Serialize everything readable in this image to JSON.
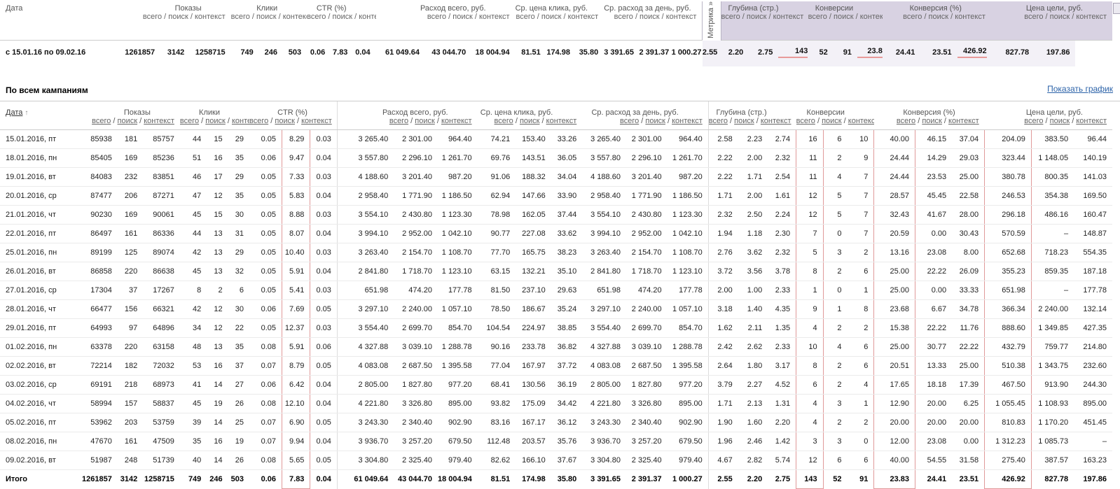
{
  "colors": {
    "accent_link": "#2b62a8",
    "highlight_red": "#e09a9a",
    "panel_lavender": "#d8d2e2"
  },
  "subcols": [
    "всего",
    "поиск",
    "контекст"
  ],
  "sub_joined": "всего / поиск / контекст",
  "groups": [
    {
      "label": "Показы"
    },
    {
      "label": "Клики"
    },
    {
      "label": "CTR (%)"
    },
    {
      "label": "Расход всего, руб."
    },
    {
      "label": "Ср. цена клика, руб."
    },
    {
      "label": "Ср. расход за день, руб."
    },
    {
      "label": "Глубина (стр.)"
    },
    {
      "label": "Конверсии"
    },
    {
      "label": "Конверсия (%)"
    },
    {
      "label": "Цена цели, руб."
    }
  ],
  "summary": {
    "date_label": "Дата",
    "period": "с 15.01.16 по 09.02.16",
    "metric_label": "Метрика »",
    "values": [
      "1261857",
      "3142",
      "1258715",
      "749",
      "246",
      "503",
      "0.06",
      "7.83",
      "0.04",
      "61 049.64",
      "43 044.70",
      "18 004.94",
      "81.51",
      "174.98",
      "35.80",
      "3 391.65",
      "2 391.37",
      "1 000.27",
      "2.55",
      "2.20",
      "2.75",
      "143",
      "52",
      "91",
      "23.83",
      "24.41",
      "23.51",
      "426.92",
      "827.78",
      "197.86"
    ],
    "underlined": [
      21,
      24,
      27
    ]
  },
  "section": {
    "title": "По всем кампаниям",
    "chart_link": "Показать график"
  },
  "table": {
    "date_header": "Дата",
    "sort_icon": "↑",
    "red_columns": [
      7,
      21,
      24,
      27
    ],
    "rows": [
      {
        "date": "15.01.2016, пт",
        "values": [
          "85938",
          "181",
          "85757",
          "44",
          "15",
          "29",
          "0.05",
          "8.29",
          "0.03",
          "3 265.40",
          "2 301.00",
          "964.40",
          "74.21",
          "153.40",
          "33.26",
          "3 265.40",
          "2 301.00",
          "964.40",
          "2.58",
          "2.23",
          "2.74",
          "16",
          "6",
          "10",
          "40.00",
          "46.15",
          "37.04",
          "204.09",
          "383.50",
          "96.44"
        ]
      },
      {
        "date": "18.01.2016, пн",
        "values": [
          "85405",
          "169",
          "85236",
          "51",
          "16",
          "35",
          "0.06",
          "9.47",
          "0.04",
          "3 557.80",
          "2 296.10",
          "1 261.70",
          "69.76",
          "143.51",
          "36.05",
          "3 557.80",
          "2 296.10",
          "1 261.70",
          "2.22",
          "2.00",
          "2.32",
          "11",
          "2",
          "9",
          "24.44",
          "14.29",
          "29.03",
          "323.44",
          "1 148.05",
          "140.19"
        ]
      },
      {
        "date": "19.01.2016, вт",
        "values": [
          "84083",
          "232",
          "83851",
          "46",
          "17",
          "29",
          "0.05",
          "7.33",
          "0.03",
          "4 188.60",
          "3 201.40",
          "987.20",
          "91.06",
          "188.32",
          "34.04",
          "4 188.60",
          "3 201.40",
          "987.20",
          "2.22",
          "1.71",
          "2.54",
          "11",
          "4",
          "7",
          "24.44",
          "23.53",
          "25.00",
          "380.78",
          "800.35",
          "141.03"
        ]
      },
      {
        "date": "20.01.2016, ср",
        "values": [
          "87477",
          "206",
          "87271",
          "47",
          "12",
          "35",
          "0.05",
          "5.83",
          "0.04",
          "2 958.40",
          "1 771.90",
          "1 186.50",
          "62.94",
          "147.66",
          "33.90",
          "2 958.40",
          "1 771.90",
          "1 186.50",
          "1.71",
          "2.00",
          "1.61",
          "12",
          "5",
          "7",
          "28.57",
          "45.45",
          "22.58",
          "246.53",
          "354.38",
          "169.50"
        ]
      },
      {
        "date": "21.01.2016, чт",
        "values": [
          "90230",
          "169",
          "90061",
          "45",
          "15",
          "30",
          "0.05",
          "8.88",
          "0.03",
          "3 554.10",
          "2 430.80",
          "1 123.30",
          "78.98",
          "162.05",
          "37.44",
          "3 554.10",
          "2 430.80",
          "1 123.30",
          "2.32",
          "2.50",
          "2.24",
          "12",
          "5",
          "7",
          "32.43",
          "41.67",
          "28.00",
          "296.18",
          "486.16",
          "160.47"
        ]
      },
      {
        "date": "22.01.2016, пт",
        "values": [
          "86497",
          "161",
          "86336",
          "44",
          "13",
          "31",
          "0.05",
          "8.07",
          "0.04",
          "3 994.10",
          "2 952.00",
          "1 042.10",
          "90.77",
          "227.08",
          "33.62",
          "3 994.10",
          "2 952.00",
          "1 042.10",
          "1.94",
          "1.18",
          "2.30",
          "7",
          "0",
          "7",
          "20.59",
          "0.00",
          "30.43",
          "570.59",
          "–",
          "148.87"
        ]
      },
      {
        "date": "25.01.2016, пн",
        "values": [
          "89199",
          "125",
          "89074",
          "42",
          "13",
          "29",
          "0.05",
          "10.40",
          "0.03",
          "3 263.40",
          "2 154.70",
          "1 108.70",
          "77.70",
          "165.75",
          "38.23",
          "3 263.40",
          "2 154.70",
          "1 108.70",
          "2.76",
          "3.62",
          "2.32",
          "5",
          "3",
          "2",
          "13.16",
          "23.08",
          "8.00",
          "652.68",
          "718.23",
          "554.35"
        ]
      },
      {
        "date": "26.01.2016, вт",
        "values": [
          "86858",
          "220",
          "86638",
          "45",
          "13",
          "32",
          "0.05",
          "5.91",
          "0.04",
          "2 841.80",
          "1 718.70",
          "1 123.10",
          "63.15",
          "132.21",
          "35.10",
          "2 841.80",
          "1 718.70",
          "1 123.10",
          "3.72",
          "3.56",
          "3.78",
          "8",
          "2",
          "6",
          "25.00",
          "22.22",
          "26.09",
          "355.23",
          "859.35",
          "187.18"
        ]
      },
      {
        "date": "27.01.2016, ср",
        "values": [
          "17304",
          "37",
          "17267",
          "8",
          "2",
          "6",
          "0.05",
          "5.41",
          "0.03",
          "651.98",
          "474.20",
          "177.78",
          "81.50",
          "237.10",
          "29.63",
          "651.98",
          "474.20",
          "177.78",
          "2.00",
          "1.00",
          "2.33",
          "1",
          "0",
          "1",
          "25.00",
          "0.00",
          "33.33",
          "651.98",
          "–",
          "177.78"
        ]
      },
      {
        "date": "28.01.2016, чт",
        "values": [
          "66477",
          "156",
          "66321",
          "42",
          "12",
          "30",
          "0.06",
          "7.69",
          "0.05",
          "3 297.10",
          "2 240.00",
          "1 057.10",
          "78.50",
          "186.67",
          "35.24",
          "3 297.10",
          "2 240.00",
          "1 057.10",
          "3.18",
          "1.40",
          "4.35",
          "9",
          "1",
          "8",
          "23.68",
          "6.67",
          "34.78",
          "366.34",
          "2 240.00",
          "132.14"
        ]
      },
      {
        "date": "29.01.2016, пт",
        "values": [
          "64993",
          "97",
          "64896",
          "34",
          "12",
          "22",
          "0.05",
          "12.37",
          "0.03",
          "3 554.40",
          "2 699.70",
          "854.70",
          "104.54",
          "224.97",
          "38.85",
          "3 554.40",
          "2 699.70",
          "854.70",
          "1.62",
          "2.11",
          "1.35",
          "4",
          "2",
          "2",
          "15.38",
          "22.22",
          "11.76",
          "888.60",
          "1 349.85",
          "427.35"
        ]
      },
      {
        "date": "01.02.2016, пн",
        "values": [
          "63378",
          "220",
          "63158",
          "48",
          "13",
          "35",
          "0.08",
          "5.91",
          "0.06",
          "4 327.88",
          "3 039.10",
          "1 288.78",
          "90.16",
          "233.78",
          "36.82",
          "4 327.88",
          "3 039.10",
          "1 288.78",
          "2.42",
          "2.62",
          "2.33",
          "10",
          "4",
          "6",
          "25.00",
          "30.77",
          "22.22",
          "432.79",
          "759.77",
          "214.80"
        ]
      },
      {
        "date": "02.02.2016, вт",
        "values": [
          "72214",
          "182",
          "72032",
          "53",
          "16",
          "37",
          "0.07",
          "8.79",
          "0.05",
          "4 083.08",
          "2 687.50",
          "1 395.58",
          "77.04",
          "167.97",
          "37.72",
          "4 083.08",
          "2 687.50",
          "1 395.58",
          "2.64",
          "1.80",
          "3.17",
          "8",
          "2",
          "6",
          "20.51",
          "13.33",
          "25.00",
          "510.38",
          "1 343.75",
          "232.60"
        ]
      },
      {
        "date": "03.02.2016, ср",
        "values": [
          "69191",
          "218",
          "68973",
          "41",
          "14",
          "27",
          "0.06",
          "6.42",
          "0.04",
          "2 805.00",
          "1 827.80",
          "977.20",
          "68.41",
          "130.56",
          "36.19",
          "2 805.00",
          "1 827.80",
          "977.20",
          "3.79",
          "2.27",
          "4.52",
          "6",
          "2",
          "4",
          "17.65",
          "18.18",
          "17.39",
          "467.50",
          "913.90",
          "244.30"
        ]
      },
      {
        "date": "04.02.2016, чт",
        "values": [
          "58994",
          "157",
          "58837",
          "45",
          "19",
          "26",
          "0.08",
          "12.10",
          "0.04",
          "4 221.80",
          "3 326.80",
          "895.00",
          "93.82",
          "175.09",
          "34.42",
          "4 221.80",
          "3 326.80",
          "895.00",
          "1.71",
          "2.13",
          "1.31",
          "4",
          "3",
          "1",
          "12.90",
          "20.00",
          "6.25",
          "1 055.45",
          "1 108.93",
          "895.00"
        ]
      },
      {
        "date": "05.02.2016, пт",
        "values": [
          "53962",
          "203",
          "53759",
          "39",
          "14",
          "25",
          "0.07",
          "6.90",
          "0.05",
          "3 243.30",
          "2 340.40",
          "902.90",
          "83.16",
          "167.17",
          "36.12",
          "3 243.30",
          "2 340.40",
          "902.90",
          "1.90",
          "1.60",
          "2.20",
          "4",
          "2",
          "2",
          "20.00",
          "20.00",
          "20.00",
          "810.83",
          "1 170.20",
          "451.45"
        ]
      },
      {
        "date": "08.02.2016, пн",
        "values": [
          "47670",
          "161",
          "47509",
          "35",
          "16",
          "19",
          "0.07",
          "9.94",
          "0.04",
          "3 936.70",
          "3 257.20",
          "679.50",
          "112.48",
          "203.57",
          "35.76",
          "3 936.70",
          "3 257.20",
          "679.50",
          "1.96",
          "2.46",
          "1.42",
          "3",
          "3",
          "0",
          "12.00",
          "23.08",
          "0.00",
          "1 312.23",
          "1 085.73",
          "–"
        ]
      },
      {
        "date": "09.02.2016, вт",
        "values": [
          "51987",
          "248",
          "51739",
          "40",
          "14",
          "26",
          "0.08",
          "5.65",
          "0.05",
          "3 304.80",
          "2 325.40",
          "979.40",
          "82.62",
          "166.10",
          "37.67",
          "3 304.80",
          "2 325.40",
          "979.40",
          "4.67",
          "2.82",
          "5.74",
          "12",
          "6",
          "6",
          "40.00",
          "54.55",
          "31.58",
          "275.40",
          "387.57",
          "163.23"
        ]
      }
    ],
    "total": {
      "date": "Итого",
      "values": [
        "1261857",
        "3142",
        "1258715",
        "749",
        "246",
        "503",
        "0.06",
        "7.83",
        "0.04",
        "61 049.64",
        "43 044.70",
        "18 004.94",
        "81.51",
        "174.98",
        "35.80",
        "3 391.65",
        "2 391.37",
        "1 000.27",
        "2.55",
        "2.20",
        "2.75",
        "143",
        "52",
        "91",
        "23.83",
        "24.41",
        "23.51",
        "426.92",
        "827.78",
        "197.86"
      ]
    }
  }
}
